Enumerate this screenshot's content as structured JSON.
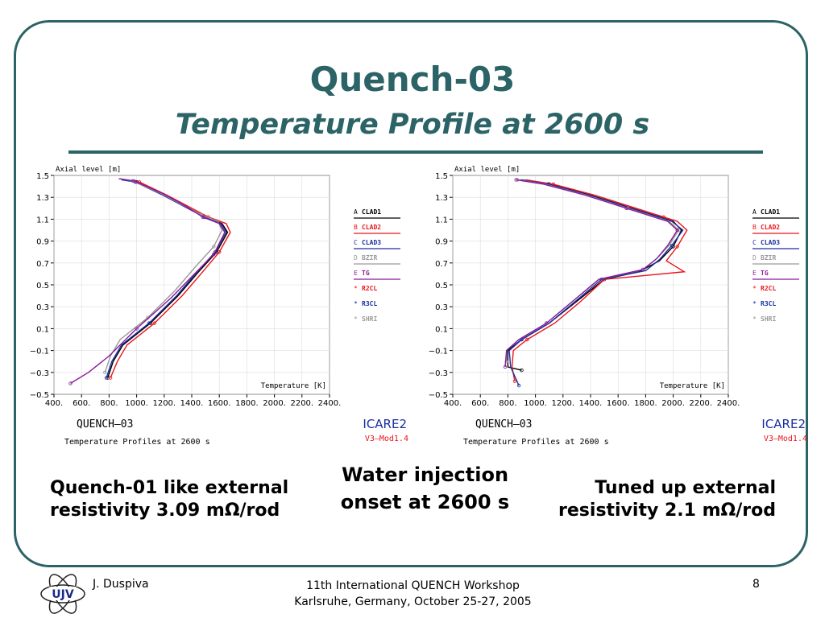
{
  "slide": {
    "title": "Quench-03",
    "subtitle": "Temperature Profile at 2600 s",
    "colors": {
      "accent": "#2b6366"
    }
  },
  "charts": {
    "y_ticks": [
      "1.5",
      "1.3",
      "1.1",
      "0.9",
      "0.7",
      "0.5",
      "0.3",
      "0.1",
      "−0.1",
      "−0.3",
      "−0.5"
    ],
    "x_ticks": [
      "400.",
      "600.",
      "800.",
      "1000.",
      "1200.",
      "1400.",
      "1600.",
      "1800.",
      "2000.",
      "2200.",
      "2400."
    ],
    "y_axis_label": "Axial level [m]",
    "x_axis_label": "Temperature [K]",
    "left_caption": "QUENCH—03",
    "left_caption2": "Temperature Profiles at 2600 s",
    "brand": "ICARE2",
    "version": "V3—Mod1.4"
  },
  "chart_data": [
    {
      "type": "line",
      "xlabel": "Temperature [K]",
      "ylabel": "Axial level [m]",
      "xlim": [
        400,
        2400
      ],
      "ylim": [
        -0.5,
        1.5
      ],
      "legend_position": "right",
      "series": [
        {
          "name": "CLAD1",
          "color": "#000000",
          "marker": "A",
          "x": [
            790,
            830,
            900,
            1100,
            1300,
            1450,
            1580,
            1660,
            1620,
            1500,
            1350,
            1200,
            1000,
            900
          ],
          "y": [
            -0.35,
            -0.2,
            -0.05,
            0.15,
            0.4,
            0.62,
            0.8,
            0.98,
            1.06,
            1.12,
            1.22,
            1.32,
            1.44,
            1.46
          ]
        },
        {
          "name": "CLAD2",
          "color": "#e8141c",
          "marker": "B",
          "x": [
            810,
            860,
            930,
            1130,
            1330,
            1480,
            1600,
            1680,
            1650,
            1520,
            1370,
            1220,
            1020,
            920
          ],
          "y": [
            -0.35,
            -0.2,
            -0.05,
            0.15,
            0.4,
            0.62,
            0.8,
            0.98,
            1.06,
            1.12,
            1.22,
            1.32,
            1.44,
            1.46
          ]
        },
        {
          "name": "CLAD3",
          "color": "#1a2fa0",
          "marker": "C",
          "x": [
            780,
            820,
            890,
            1090,
            1290,
            1440,
            1570,
            1650,
            1610,
            1490,
            1340,
            1190,
            990,
            890
          ],
          "y": [
            -0.35,
            -0.2,
            -0.05,
            0.15,
            0.4,
            0.62,
            0.8,
            0.98,
            1.06,
            1.12,
            1.22,
            1.32,
            1.44,
            1.46
          ]
        },
        {
          "name": "BZIR",
          "color": "#9a9a9a",
          "marker": "D",
          "x": [
            770,
            810,
            880,
            1080,
            1280,
            1430,
            1560,
            1620,
            1590,
            1470,
            1320,
            1170,
            970,
            880
          ],
          "y": [
            -0.3,
            -0.15,
            0.0,
            0.2,
            0.45,
            0.67,
            0.85,
            1.0,
            1.08,
            1.14,
            1.24,
            1.34,
            1.45,
            1.47
          ]
        },
        {
          "name": "TG",
          "color": "#8a1a9a",
          "marker": "E",
          "x": [
            520,
            650,
            800,
            1000,
            1250,
            1420,
            1560,
            1640,
            1600,
            1480,
            1330,
            1180,
            980,
            870
          ],
          "y": [
            -0.4,
            -0.3,
            -0.15,
            0.1,
            0.38,
            0.6,
            0.78,
            0.98,
            1.06,
            1.12,
            1.24,
            1.34,
            1.45,
            1.47
          ]
        },
        {
          "name": "R2CL",
          "color": "#e8141c",
          "marker": "*",
          "x": [],
          "y": []
        },
        {
          "name": "R3CL",
          "color": "#1a2fa0",
          "marker": "*",
          "x": [],
          "y": []
        },
        {
          "name": "SHRI",
          "color": "#9a9a9a",
          "marker": "*",
          "x": [],
          "y": []
        }
      ]
    },
    {
      "type": "line",
      "xlabel": "Temperature [K]",
      "ylabel": "Axial level [m]",
      "xlim": [
        400,
        2400
      ],
      "ylim": [
        -0.5,
        1.5
      ],
      "legend_position": "right",
      "series": [
        {
          "name": "CLAD1",
          "color": "#000000",
          "marker": "A",
          "x": [
            900,
            800,
            800,
            900,
            1100,
            1300,
            1500,
            1750,
            1900,
            2000,
            2060,
            2000,
            1900,
            1700,
            1400,
            1100,
            900
          ],
          "y": [
            -0.28,
            -0.25,
            -0.1,
            0.0,
            0.15,
            0.35,
            0.55,
            0.62,
            0.72,
            0.85,
            1.0,
            1.08,
            1.12,
            1.2,
            1.32,
            1.42,
            1.46
          ]
        },
        {
          "name": "CLAD2",
          "color": "#e8141c",
          "marker": "B",
          "x": [
            850,
            830,
            840,
            940,
            1140,
            1330,
            1500,
            2080,
            1950,
            2030,
            2100,
            2030,
            1930,
            1730,
            1430,
            1130,
            930
          ],
          "y": [
            -0.38,
            -0.25,
            -0.1,
            0.0,
            0.15,
            0.35,
            0.55,
            0.62,
            0.72,
            0.85,
            1.0,
            1.08,
            1.12,
            1.2,
            1.32,
            1.42,
            1.46
          ]
        },
        {
          "name": "CLAD3",
          "color": "#1a2fa0",
          "marker": "C",
          "x": [
            880,
            820,
            810,
            900,
            1100,
            1290,
            1480,
            1800,
            1900,
            1990,
            2070,
            1990,
            1890,
            1690,
            1390,
            1090,
            890
          ],
          "y": [
            -0.42,
            -0.25,
            -0.1,
            0.0,
            0.15,
            0.35,
            0.55,
            0.63,
            0.73,
            0.86,
            1.0,
            1.08,
            1.12,
            1.2,
            1.32,
            1.42,
            1.46
          ]
        },
        {
          "name": "BZIR",
          "color": "#9a9a9a",
          "marker": "D",
          "x": [
            790,
            790,
            880,
            1080,
            1270,
            1460,
            1780,
            1880,
            1970,
            2040,
            1970,
            1870,
            1670,
            1370,
            1070,
            870
          ],
          "y": [
            -0.2,
            -0.1,
            0.0,
            0.15,
            0.35,
            0.55,
            0.64,
            0.74,
            0.86,
            1.0,
            1.08,
            1.12,
            1.2,
            1.32,
            1.42,
            1.46
          ]
        },
        {
          "name": "TG",
          "color": "#8a1a9a",
          "marker": "E",
          "x": [
            780,
            790,
            880,
            1080,
            1270,
            1460,
            1780,
            1880,
            1960,
            2030,
            1960,
            1860,
            1660,
            1360,
            1060,
            860
          ],
          "y": [
            -0.25,
            -0.1,
            0.0,
            0.15,
            0.35,
            0.55,
            0.64,
            0.74,
            0.86,
            1.0,
            1.08,
            1.12,
            1.2,
            1.32,
            1.42,
            1.46
          ]
        },
        {
          "name": "R2CL",
          "color": "#e8141c",
          "marker": "*",
          "x": [],
          "y": []
        },
        {
          "name": "R3CL",
          "color": "#1a2fa0",
          "marker": "*",
          "x": [],
          "y": []
        },
        {
          "name": "SHRI",
          "color": "#9a9a9a",
          "marker": "*",
          "x": [],
          "y": []
        }
      ]
    }
  ],
  "captions": {
    "left_line1": "Quench-01 like external",
    "left_line2": "resistivity 3.09 mΩ/rod",
    "center_line1": "Water injection",
    "center_line2": "onset at 2600 s",
    "right_line1": "Tuned up external",
    "right_line2": "resistivity 2.1 mΩ/rod"
  },
  "footer": {
    "author": "J. Duspiva",
    "event_line1": "11th International QUENCH Workshop",
    "event_line2": "Karlsruhe, Germany, October 25-27, 2005",
    "page": "8",
    "logo_text": "UJV"
  }
}
